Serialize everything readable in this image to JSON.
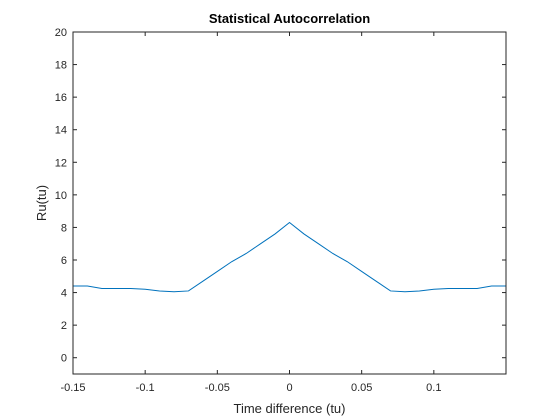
{
  "chart_data": {
    "type": "line",
    "title": "Statistical Autocorrelation",
    "xlabel": "Time difference (tu)",
    "ylabel": "Ru(tu)",
    "xlim": [
      -0.15,
      0.15
    ],
    "ylim": [
      -1,
      20
    ],
    "xticks": [
      -0.15,
      -0.1,
      -0.05,
      0,
      0.05,
      0.1
    ],
    "xtick_labels": [
      "-0.15",
      "-0.1",
      "-0.05",
      "0",
      "0.05",
      "0.1"
    ],
    "yticks": [
      0,
      2,
      4,
      6,
      8,
      10,
      12,
      14,
      16,
      18,
      20
    ],
    "ytick_labels": [
      "0",
      "2",
      "4",
      "6",
      "8",
      "10",
      "12",
      "14",
      "16",
      "18",
      "20"
    ],
    "grid": false,
    "box": true,
    "series": [
      {
        "color": "#0072BD",
        "x": [
          -0.15,
          -0.14,
          -0.13,
          -0.12,
          -0.11,
          -0.1,
          -0.09,
          -0.08,
          -0.07,
          -0.06,
          -0.05,
          -0.04,
          -0.03,
          -0.02,
          -0.01,
          0.0,
          0.01,
          0.02,
          0.03,
          0.04,
          0.05,
          0.06,
          0.07,
          0.08,
          0.09,
          0.1,
          0.11,
          0.12,
          0.13,
          0.14,
          0.15
        ],
        "y": [
          4.4,
          4.4,
          4.25,
          4.25,
          4.25,
          4.2,
          4.1,
          4.05,
          4.1,
          4.7,
          5.3,
          5.9,
          6.4,
          7.0,
          7.6,
          8.3,
          7.6,
          7.0,
          6.4,
          5.9,
          5.3,
          4.7,
          4.1,
          4.05,
          4.1,
          4.2,
          4.25,
          4.25,
          4.25,
          4.4,
          4.4
        ]
      }
    ]
  }
}
